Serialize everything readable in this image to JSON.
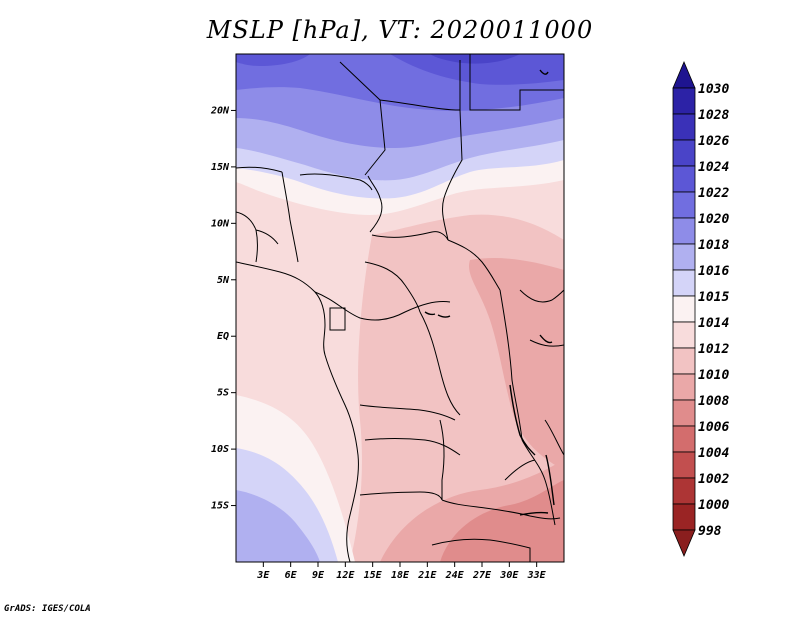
{
  "title": "MSLP [hPa], VT: 2020011000",
  "footer": "GrADS: IGES/COLA",
  "chart_data": {
    "type": "filled-contour-map",
    "variable": "MSLP",
    "units": "hPa",
    "valid_time": "2020011000",
    "lon_range": [
      0,
      36
    ],
    "lat_range": [
      -20,
      25
    ],
    "lat_ticks": [
      "20N",
      "15N",
      "10N",
      "5N",
      "EQ",
      "5S",
      "10S",
      "15S"
    ],
    "lon_ticks": [
      "3E",
      "6E",
      "9E",
      "12E",
      "15E",
      "18E",
      "21E",
      "24E",
      "27E",
      "30E",
      "33E"
    ],
    "legend": {
      "levels": [
        "1030",
        "1028",
        "1026",
        "1024",
        "1022",
        "1020",
        "1018",
        "1016",
        "1015",
        "1014",
        "1012",
        "1010",
        "1008",
        "1006",
        "1004",
        "1002",
        "1000",
        "998"
      ],
      "colors": [
        "#1e1490",
        "#2c22a6",
        "#3a31b8",
        "#4a44c8",
        "#5c57d6",
        "#716ee0",
        "#8e8ce8",
        "#b0b0f0",
        "#d4d4f8",
        "#fbf2f2",
        "#f8dcdc",
        "#f2c3c3",
        "#eaa8a8",
        "#e08c8c",
        "#d36d6d",
        "#c24f4f",
        "#ad3535",
        "#9a2424",
        "#8a1e1e"
      ]
    },
    "pressure_field_hpa": {
      "note": "approximate values read from shading at lat/lon",
      "samples": [
        {
          "lon": 6,
          "lat": 24,
          "value": 1021
        },
        {
          "lon": 33,
          "lat": 24,
          "value": 1022
        },
        {
          "lon": 18,
          "lat": 20,
          "value": 1019
        },
        {
          "lon": 10,
          "lat": 15,
          "value": 1016
        },
        {
          "lon": 25,
          "lat": 14,
          "value": 1013
        },
        {
          "lon": 18,
          "lat": 7,
          "value": 1010
        },
        {
          "lon": 28,
          "lat": 2,
          "value": 1009
        },
        {
          "lon": 2,
          "lat": -2,
          "value": 1013
        },
        {
          "lon": 22,
          "lat": -5,
          "value": 1010
        },
        {
          "lon": 2,
          "lat": -15,
          "value": 1017
        },
        {
          "lon": 26,
          "lat": -18,
          "value": 1008
        },
        {
          "lon": 34,
          "lat": -12,
          "value": 1008
        }
      ]
    }
  }
}
